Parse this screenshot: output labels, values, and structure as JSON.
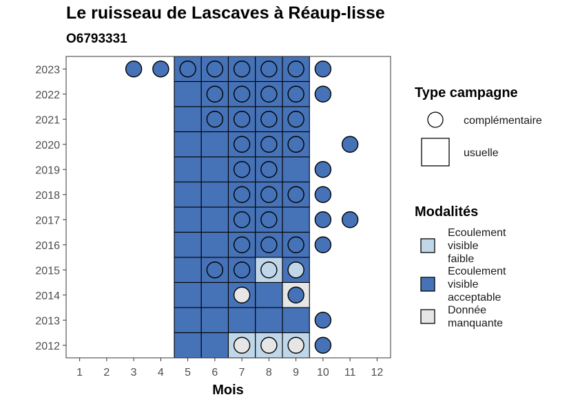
{
  "title": "Le ruisseau de Lascaves à Réaup-lisse",
  "subtitle": "O6793331",
  "chart_data": {
    "type": "heatmap",
    "xlabel": "Mois",
    "ylabel": "",
    "x_ticks": [
      1,
      2,
      3,
      4,
      5,
      6,
      7,
      8,
      9,
      10,
      11,
      12
    ],
    "y_ticks": [
      2012,
      2013,
      2014,
      2015,
      2016,
      2017,
      2018,
      2019,
      2020,
      2021,
      2022,
      2023
    ],
    "colors": {
      "Ecoulement visible faible": "#bfd7e8",
      "Ecoulement visible acceptable": "#4672b8",
      "Donnée manquante": "#e6e6e6"
    },
    "legend_campaign_title": "Type campagne",
    "legend_campaign": [
      {
        "shape": "circle",
        "label": "complémentaire"
      },
      {
        "shape": "square",
        "label": "usuelle"
      }
    ],
    "legend_modalite_title": "Modalités",
    "legend_modalite": [
      {
        "key": "Ecoulement visible faible",
        "lines": [
          "Ecoulement",
          "visible",
          "faible"
        ]
      },
      {
        "key": "Ecoulement visible acceptable",
        "lines": [
          "Ecoulement",
          "visible",
          "acceptable"
        ]
      },
      {
        "key": "Donnée manquante",
        "lines": [
          "Donnée",
          "manquante"
        ]
      }
    ],
    "usuelle": [
      {
        "year": 2023,
        "month": 5,
        "value": "Ecoulement visible acceptable"
      },
      {
        "year": 2023,
        "month": 6,
        "value": "Ecoulement visible acceptable"
      },
      {
        "year": 2023,
        "month": 7,
        "value": "Ecoulement visible acceptable"
      },
      {
        "year": 2023,
        "month": 8,
        "value": "Ecoulement visible acceptable"
      },
      {
        "year": 2023,
        "month": 9,
        "value": "Ecoulement visible acceptable"
      },
      {
        "year": 2022,
        "month": 5,
        "value": "Ecoulement visible acceptable"
      },
      {
        "year": 2022,
        "month": 6,
        "value": "Ecoulement visible acceptable"
      },
      {
        "year": 2022,
        "month": 7,
        "value": "Ecoulement visible acceptable"
      },
      {
        "year": 2022,
        "month": 8,
        "value": "Ecoulement visible acceptable"
      },
      {
        "year": 2022,
        "month": 9,
        "value": "Ecoulement visible acceptable"
      },
      {
        "year": 2021,
        "month": 5,
        "value": "Ecoulement visible acceptable"
      },
      {
        "year": 2021,
        "month": 6,
        "value": "Ecoulement visible acceptable"
      },
      {
        "year": 2021,
        "month": 7,
        "value": "Ecoulement visible acceptable"
      },
      {
        "year": 2021,
        "month": 8,
        "value": "Ecoulement visible acceptable"
      },
      {
        "year": 2021,
        "month": 9,
        "value": "Ecoulement visible acceptable"
      },
      {
        "year": 2020,
        "month": 5,
        "value": "Ecoulement visible acceptable"
      },
      {
        "year": 2020,
        "month": 6,
        "value": "Ecoulement visible acceptable"
      },
      {
        "year": 2020,
        "month": 7,
        "value": "Ecoulement visible acceptable"
      },
      {
        "year": 2020,
        "month": 8,
        "value": "Ecoulement visible acceptable"
      },
      {
        "year": 2020,
        "month": 9,
        "value": "Ecoulement visible acceptable"
      },
      {
        "year": 2019,
        "month": 5,
        "value": "Ecoulement visible acceptable"
      },
      {
        "year": 2019,
        "month": 6,
        "value": "Ecoulement visible acceptable"
      },
      {
        "year": 2019,
        "month": 7,
        "value": "Ecoulement visible acceptable"
      },
      {
        "year": 2019,
        "month": 8,
        "value": "Ecoulement visible acceptable"
      },
      {
        "year": 2019,
        "month": 9,
        "value": "Ecoulement visible acceptable"
      },
      {
        "year": 2018,
        "month": 5,
        "value": "Ecoulement visible acceptable"
      },
      {
        "year": 2018,
        "month": 6,
        "value": "Ecoulement visible acceptable"
      },
      {
        "year": 2018,
        "month": 7,
        "value": "Ecoulement visible acceptable"
      },
      {
        "year": 2018,
        "month": 8,
        "value": "Ecoulement visible acceptable"
      },
      {
        "year": 2018,
        "month": 9,
        "value": "Ecoulement visible acceptable"
      },
      {
        "year": 2017,
        "month": 5,
        "value": "Ecoulement visible acceptable"
      },
      {
        "year": 2017,
        "month": 6,
        "value": "Ecoulement visible acceptable"
      },
      {
        "year": 2017,
        "month": 7,
        "value": "Ecoulement visible acceptable"
      },
      {
        "year": 2017,
        "month": 8,
        "value": "Ecoulement visible acceptable"
      },
      {
        "year": 2017,
        "month": 9,
        "value": "Ecoulement visible acceptable"
      },
      {
        "year": 2016,
        "month": 5,
        "value": "Ecoulement visible acceptable"
      },
      {
        "year": 2016,
        "month": 6,
        "value": "Ecoulement visible acceptable"
      },
      {
        "year": 2016,
        "month": 7,
        "value": "Ecoulement visible acceptable"
      },
      {
        "year": 2016,
        "month": 8,
        "value": "Ecoulement visible acceptable"
      },
      {
        "year": 2016,
        "month": 9,
        "value": "Ecoulement visible acceptable"
      },
      {
        "year": 2015,
        "month": 5,
        "value": "Ecoulement visible acceptable"
      },
      {
        "year": 2015,
        "month": 6,
        "value": "Ecoulement visible acceptable"
      },
      {
        "year": 2015,
        "month": 7,
        "value": "Ecoulement visible acceptable"
      },
      {
        "year": 2015,
        "month": 8,
        "value": "Ecoulement visible faible"
      },
      {
        "year": 2015,
        "month": 9,
        "value": "Ecoulement visible acceptable"
      },
      {
        "year": 2014,
        "month": 5,
        "value": "Ecoulement visible acceptable"
      },
      {
        "year": 2014,
        "month": 6,
        "value": "Ecoulement visible acceptable"
      },
      {
        "year": 2014,
        "month": 7,
        "value": "Ecoulement visible acceptable"
      },
      {
        "year": 2014,
        "month": 8,
        "value": "Ecoulement visible acceptable"
      },
      {
        "year": 2014,
        "month": 9,
        "value": "Donnée manquante"
      },
      {
        "year": 2013,
        "month": 5,
        "value": "Ecoulement visible acceptable"
      },
      {
        "year": 2013,
        "month": 6,
        "value": "Ecoulement visible acceptable"
      },
      {
        "year": 2013,
        "month": 7,
        "value": "Ecoulement visible acceptable"
      },
      {
        "year": 2013,
        "month": 8,
        "value": "Ecoulement visible acceptable"
      },
      {
        "year": 2013,
        "month": 9,
        "value": "Ecoulement visible acceptable"
      },
      {
        "year": 2012,
        "month": 5,
        "value": "Ecoulement visible acceptable"
      },
      {
        "year": 2012,
        "month": 6,
        "value": "Ecoulement visible acceptable"
      },
      {
        "year": 2012,
        "month": 7,
        "value": "Ecoulement visible faible"
      },
      {
        "year": 2012,
        "month": 8,
        "value": "Ecoulement visible faible"
      },
      {
        "year": 2012,
        "month": 9,
        "value": "Ecoulement visible faible"
      }
    ],
    "complementaire": [
      {
        "year": 2023,
        "month": 3,
        "value": "Ecoulement visible acceptable"
      },
      {
        "year": 2023,
        "month": 4,
        "value": "Ecoulement visible acceptable"
      },
      {
        "year": 2023,
        "month": 5,
        "value": "Ecoulement visible acceptable"
      },
      {
        "year": 2023,
        "month": 6,
        "value": "Ecoulement visible acceptable"
      },
      {
        "year": 2023,
        "month": 7,
        "value": "Ecoulement visible acceptable"
      },
      {
        "year": 2023,
        "month": 8,
        "value": "Ecoulement visible acceptable"
      },
      {
        "year": 2023,
        "month": 9,
        "value": "Ecoulement visible acceptable"
      },
      {
        "year": 2023,
        "month": 10,
        "value": "Ecoulement visible acceptable"
      },
      {
        "year": 2022,
        "month": 6,
        "value": "Ecoulement visible acceptable"
      },
      {
        "year": 2022,
        "month": 7,
        "value": "Ecoulement visible acceptable"
      },
      {
        "year": 2022,
        "month": 8,
        "value": "Ecoulement visible acceptable"
      },
      {
        "year": 2022,
        "month": 9,
        "value": "Ecoulement visible acceptable"
      },
      {
        "year": 2022,
        "month": 10,
        "value": "Ecoulement visible acceptable"
      },
      {
        "year": 2021,
        "month": 6,
        "value": "Ecoulement visible acceptable"
      },
      {
        "year": 2021,
        "month": 7,
        "value": "Ecoulement visible acceptable"
      },
      {
        "year": 2021,
        "month": 8,
        "value": "Ecoulement visible acceptable"
      },
      {
        "year": 2021,
        "month": 9,
        "value": "Ecoulement visible acceptable"
      },
      {
        "year": 2020,
        "month": 7,
        "value": "Ecoulement visible acceptable"
      },
      {
        "year": 2020,
        "month": 8,
        "value": "Ecoulement visible acceptable"
      },
      {
        "year": 2020,
        "month": 9,
        "value": "Ecoulement visible acceptable"
      },
      {
        "year": 2020,
        "month": 11,
        "value": "Ecoulement visible acceptable"
      },
      {
        "year": 2019,
        "month": 7,
        "value": "Ecoulement visible acceptable"
      },
      {
        "year": 2019,
        "month": 8,
        "value": "Ecoulement visible acceptable"
      },
      {
        "year": 2019,
        "month": 10,
        "value": "Ecoulement visible acceptable"
      },
      {
        "year": 2018,
        "month": 7,
        "value": "Ecoulement visible acceptable"
      },
      {
        "year": 2018,
        "month": 8,
        "value": "Ecoulement visible acceptable"
      },
      {
        "year": 2018,
        "month": 9,
        "value": "Ecoulement visible acceptable"
      },
      {
        "year": 2018,
        "month": 10,
        "value": "Ecoulement visible acceptable"
      },
      {
        "year": 2017,
        "month": 7,
        "value": "Ecoulement visible acceptable"
      },
      {
        "year": 2017,
        "month": 8,
        "value": "Ecoulement visible acceptable"
      },
      {
        "year": 2017,
        "month": 10,
        "value": "Ecoulement visible acceptable"
      },
      {
        "year": 2017,
        "month": 11,
        "value": "Ecoulement visible acceptable"
      },
      {
        "year": 2016,
        "month": 7,
        "value": "Ecoulement visible acceptable"
      },
      {
        "year": 2016,
        "month": 8,
        "value": "Ecoulement visible acceptable"
      },
      {
        "year": 2016,
        "month": 9,
        "value": "Ecoulement visible acceptable"
      },
      {
        "year": 2016,
        "month": 10,
        "value": "Ecoulement visible acceptable"
      },
      {
        "year": 2015,
        "month": 6,
        "value": "Ecoulement visible acceptable"
      },
      {
        "year": 2015,
        "month": 7,
        "value": "Ecoulement visible acceptable"
      },
      {
        "year": 2015,
        "month": 8,
        "value": "Ecoulement visible faible"
      },
      {
        "year": 2015,
        "month": 9,
        "value": "Ecoulement visible faible"
      },
      {
        "year": 2014,
        "month": 7,
        "value": "Donnée manquante"
      },
      {
        "year": 2014,
        "month": 9,
        "value": "Ecoulement visible acceptable"
      },
      {
        "year": 2013,
        "month": 10,
        "value": "Ecoulement visible acceptable"
      },
      {
        "year": 2012,
        "month": 7,
        "value": "Donnée manquante"
      },
      {
        "year": 2012,
        "month": 8,
        "value": "Donnée manquante"
      },
      {
        "year": 2012,
        "month": 9,
        "value": "Donnée manquante"
      },
      {
        "year": 2012,
        "month": 10,
        "value": "Ecoulement visible acceptable"
      }
    ]
  }
}
